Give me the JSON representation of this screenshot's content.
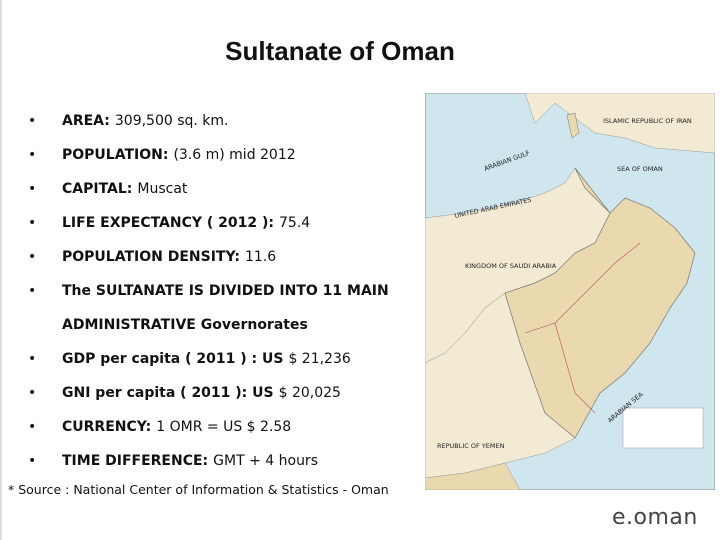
{
  "header": {
    "title": "Sultanate of Oman"
  },
  "bullets": [
    {
      "label": "AREA:",
      "value": "309,500 sq. km."
    },
    {
      "label": "POPULATION:",
      "value": "(3.6 m) mid 2012"
    },
    {
      "label": "CAPITAL:",
      "value": "Muscat"
    },
    {
      "label": "LIFE EXPECTANCY ( 2012 ):",
      "value": "75.4"
    },
    {
      "label": "POPULATION DENSITY:",
      "value": "11.6"
    },
    {
      "label": "The SULTANATE IS DIVIDED INTO 11 MAIN ADMINISTRATIVE Governorates"
    },
    {
      "label": "GDP per capita ( 2011 ) : US",
      "value": "$ 21,236"
    },
    {
      "label": "GNI per capita ( 2011 ): US",
      "value": "$ 20,025"
    },
    {
      "label": "CURRENCY:",
      "value": "1 OMR  =  US $ 2.58"
    },
    {
      "label": "TIME DIFFERENCE:",
      "value": "GMT + 4 hours"
    }
  ],
  "map": {
    "labels": [
      "ISLAMIC REPUBLIC OF IRAN",
      "ARABIAN GULF",
      "SEA OF OMAN",
      "UNITED ARAB EMIRATES",
      "KINGDOM OF SAUDI ARABIA",
      "ARABIAN SEA",
      "REPUBLIC OF YEMEN"
    ]
  },
  "footer": {
    "source": "* Source : National Center of Information & Statistics - Oman",
    "logo": "e.oman"
  }
}
